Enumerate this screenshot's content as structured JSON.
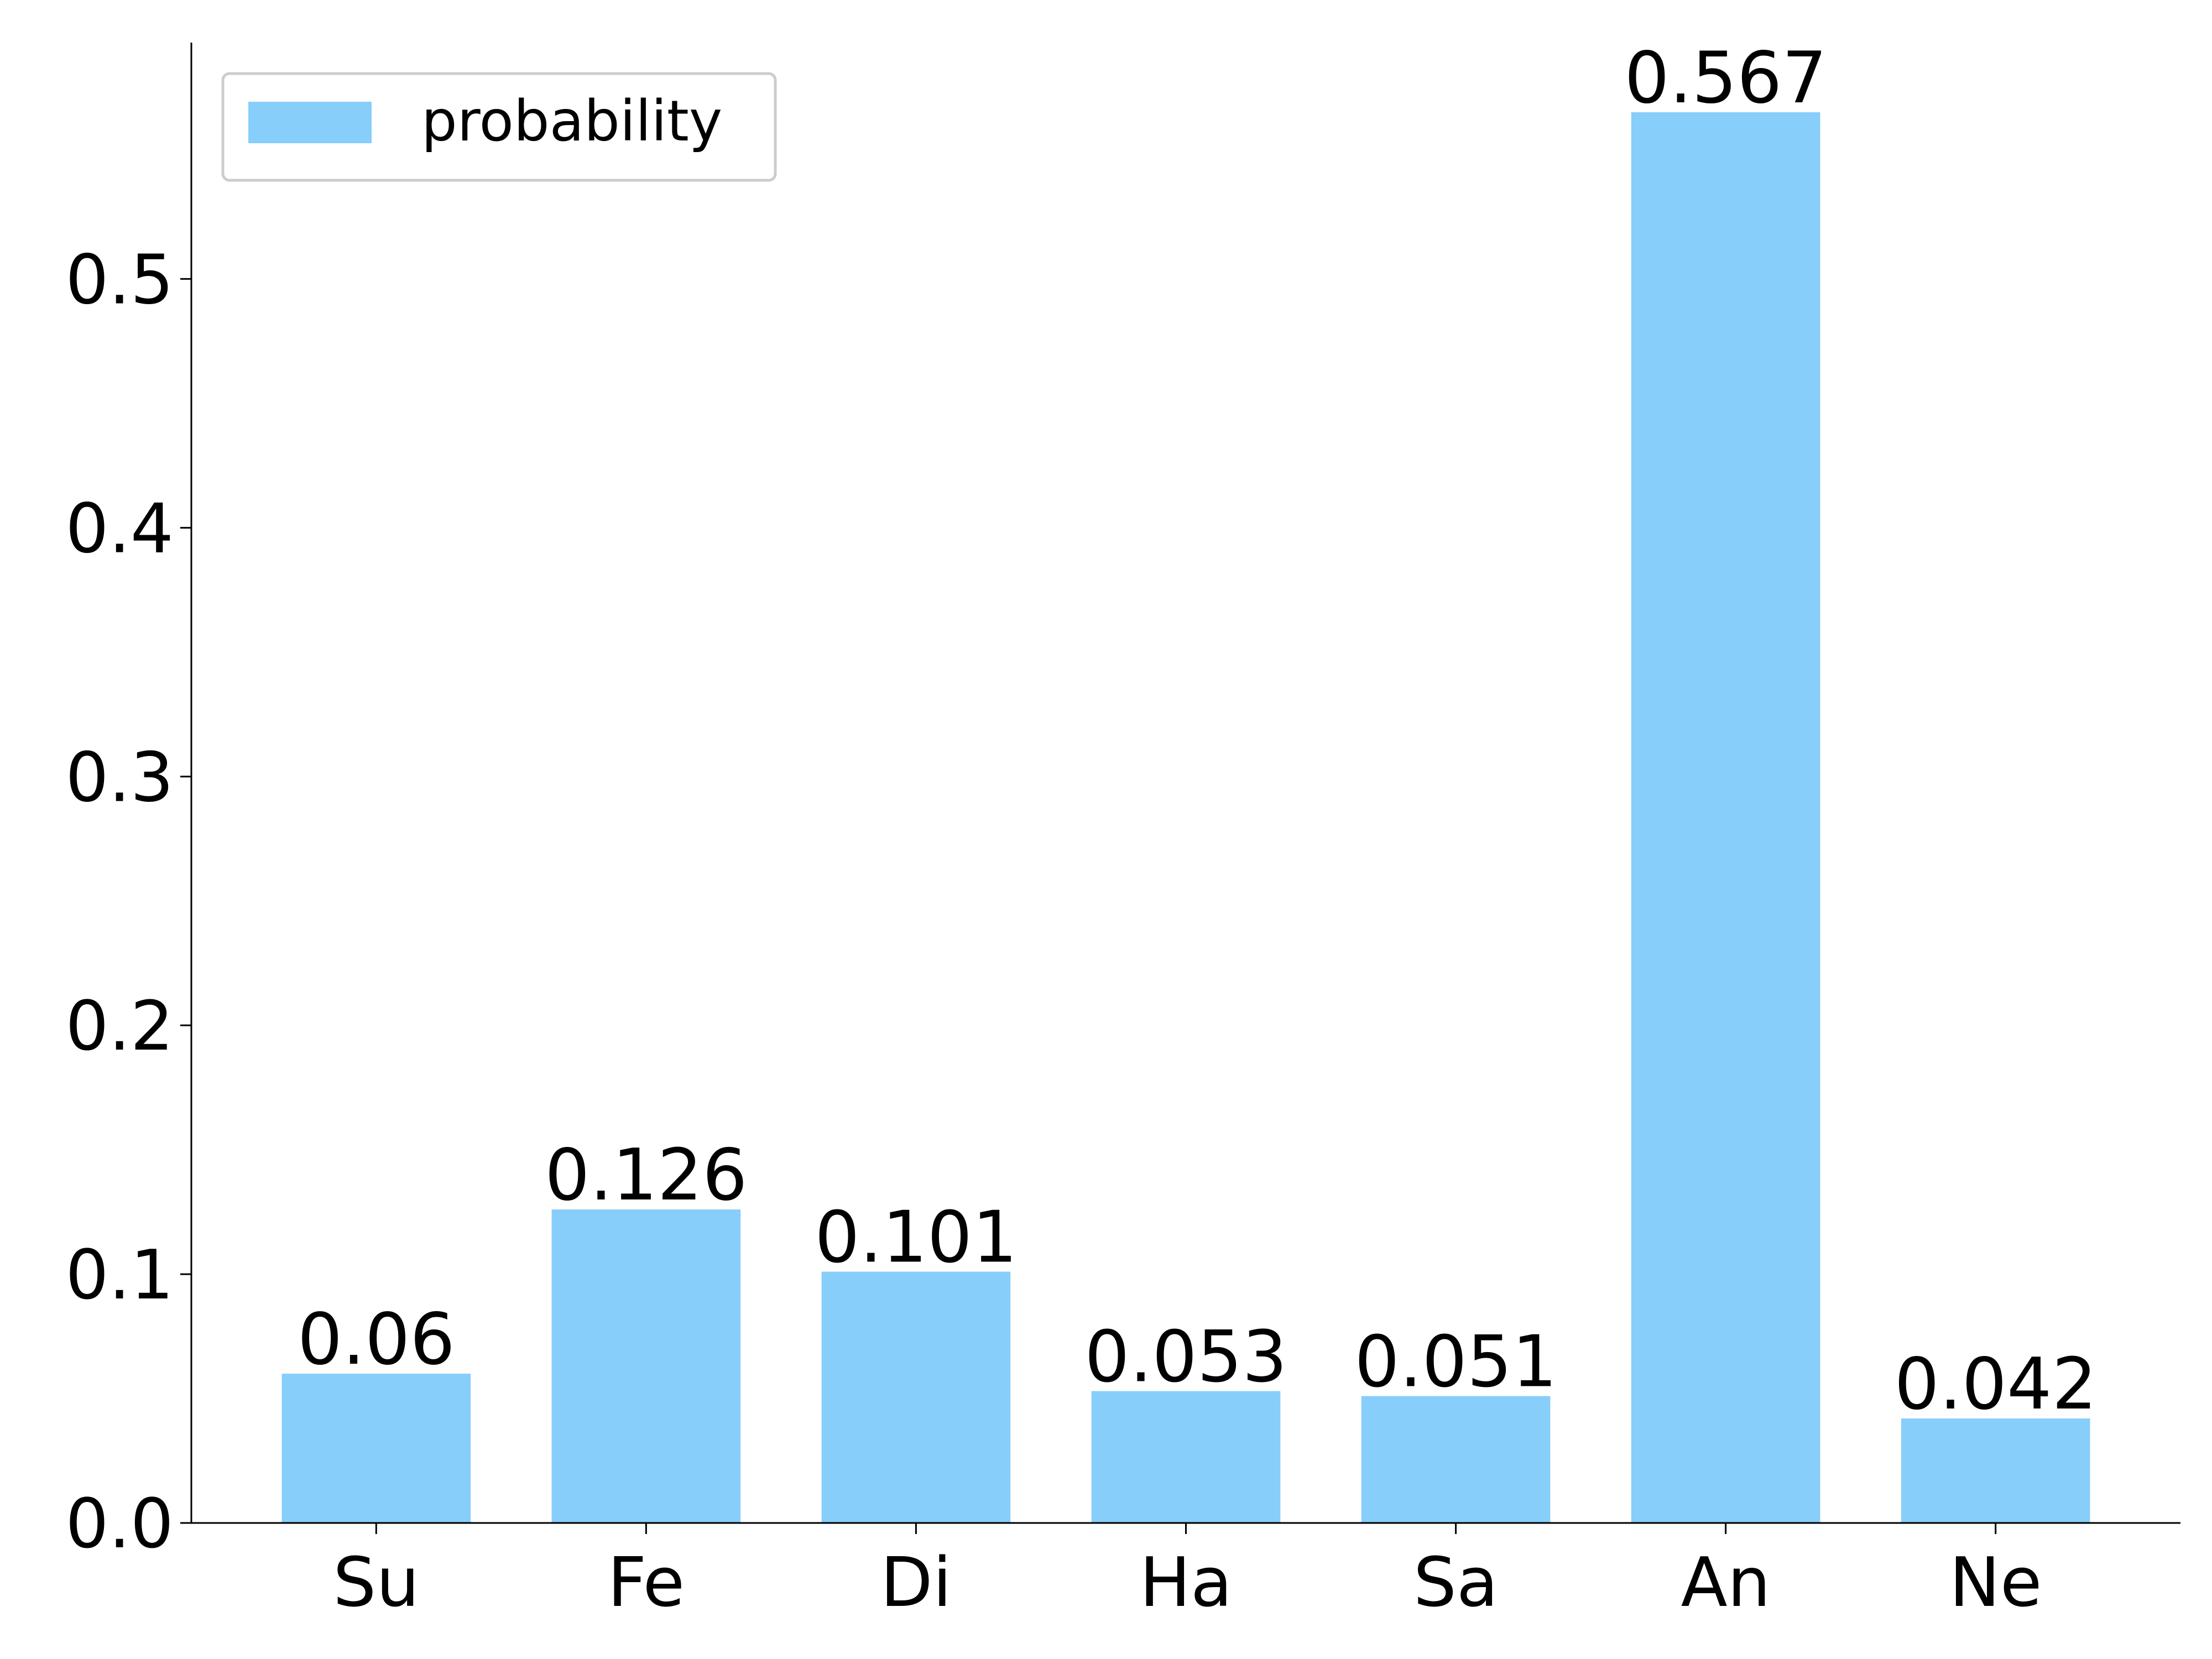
{
  "chart_data": {
    "type": "bar",
    "categories": [
      "Su",
      "Fe",
      "Di",
      "Ha",
      "Sa",
      "An",
      "Ne"
    ],
    "series": [
      {
        "name": "probability",
        "color": "#87cefa",
        "values": [
          0.06,
          0.126,
          0.101,
          0.053,
          0.051,
          0.567,
          0.042
        ]
      }
    ],
    "ylim": [
      0,
      0.595
    ],
    "yticks": [
      {
        "value": 0,
        "label": "0.0"
      },
      0.1,
      0.2,
      0.3,
      0.4,
      0.5
    ],
    "legend": "upper-left",
    "grid": false
  }
}
